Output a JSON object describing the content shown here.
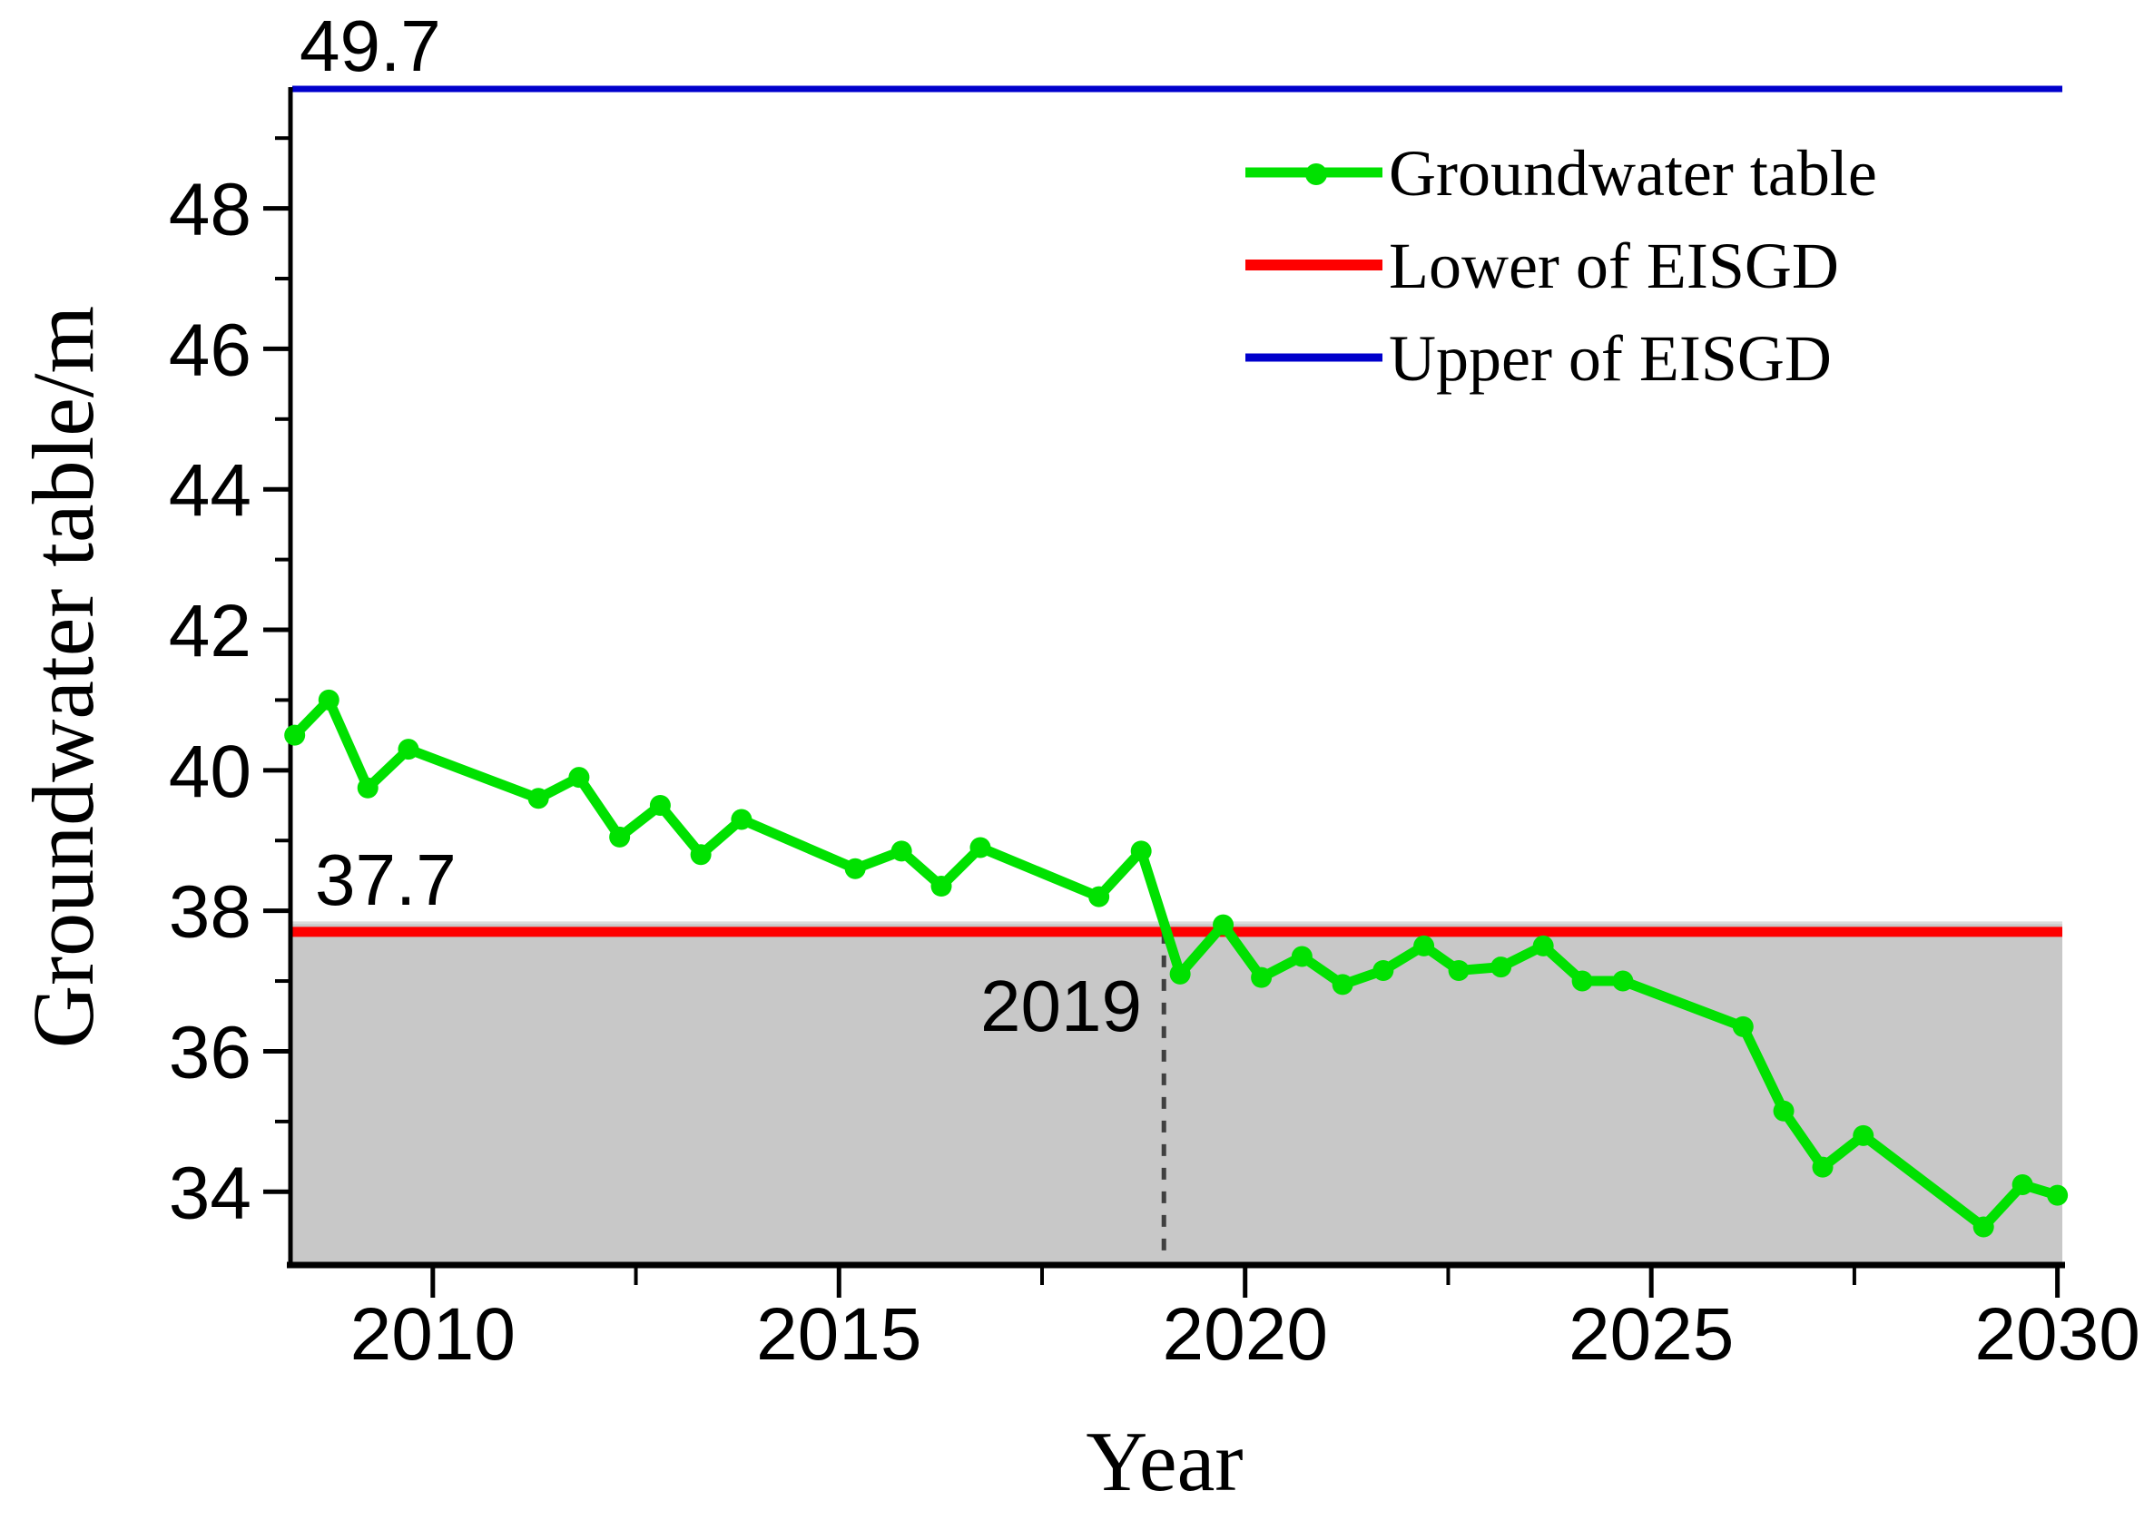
{
  "chart_data": {
    "type": "line",
    "title": "",
    "xlabel": "Year",
    "ylabel": "Groundwater table/m",
    "axes": {
      "x_range": [
        2008.27,
        2030.06
      ],
      "y_range": [
        32.97,
        49.7
      ],
      "x_major_ticks": [
        2010,
        2015,
        2020,
        2025,
        2030
      ],
      "x_minor_ticks": [
        2012.5,
        2017.5,
        2022.5,
        2027.5
      ],
      "y_major_ticks": [
        34,
        36,
        38,
        40,
        42,
        44,
        46,
        48
      ],
      "y_minor_ticks": [
        35,
        37,
        39,
        41,
        43,
        45,
        47,
        49
      ],
      "grid": false
    },
    "series": [
      {
        "name": "Groundwater table",
        "type": "line",
        "color": "#00e100",
        "marker": "circle",
        "points": [
          [
            2008.3,
            40.5
          ],
          [
            2008.72,
            41.0
          ],
          [
            2009.2,
            39.75
          ],
          [
            2009.7,
            40.3
          ],
          [
            2011.3,
            39.6
          ],
          [
            2011.8,
            39.9
          ],
          [
            2012.3,
            39.05
          ],
          [
            2012.8,
            39.5
          ],
          [
            2013.3,
            38.8
          ],
          [
            2013.8,
            39.3
          ],
          [
            2015.2,
            38.6
          ],
          [
            2015.77,
            38.85
          ],
          [
            2016.26,
            38.35
          ],
          [
            2016.74,
            38.9
          ],
          [
            2018.2,
            38.2
          ],
          [
            2018.72,
            38.85
          ],
          [
            2019.2,
            37.1
          ],
          [
            2019.73,
            37.8
          ],
          [
            2020.2,
            37.05
          ],
          [
            2020.7,
            37.35
          ],
          [
            2021.2,
            36.95
          ],
          [
            2021.7,
            37.15
          ],
          [
            2022.2,
            37.5
          ],
          [
            2022.63,
            37.15
          ],
          [
            2023.15,
            37.2
          ],
          [
            2023.67,
            37.5
          ],
          [
            2024.15,
            37.0
          ],
          [
            2024.65,
            37.0
          ],
          [
            2026.13,
            36.35
          ],
          [
            2026.63,
            35.15
          ],
          [
            2027.11,
            34.35
          ],
          [
            2027.61,
            34.8
          ],
          [
            2029.09,
            33.5
          ],
          [
            2029.57,
            34.1
          ],
          [
            2030.0,
            33.95
          ]
        ]
      },
      {
        "name": "Lower of EISGD",
        "type": "hline",
        "color": "#fe0000",
        "value": 37.7
      },
      {
        "name": "Upper of EISGD",
        "type": "hline",
        "color": "#0000cc",
        "value": 49.7
      }
    ],
    "shaded_region": {
      "below": 37.7,
      "color": "#c8c8c8"
    },
    "annotations": {
      "upper_line_label": "49.7",
      "lower_line_label": "37.7",
      "vline_year": 2019,
      "vline_label": "2019"
    },
    "legend_position": "top-right",
    "colors": {
      "dashed_line": "#404040",
      "axis": "#000000",
      "background": "#ffffff"
    }
  }
}
